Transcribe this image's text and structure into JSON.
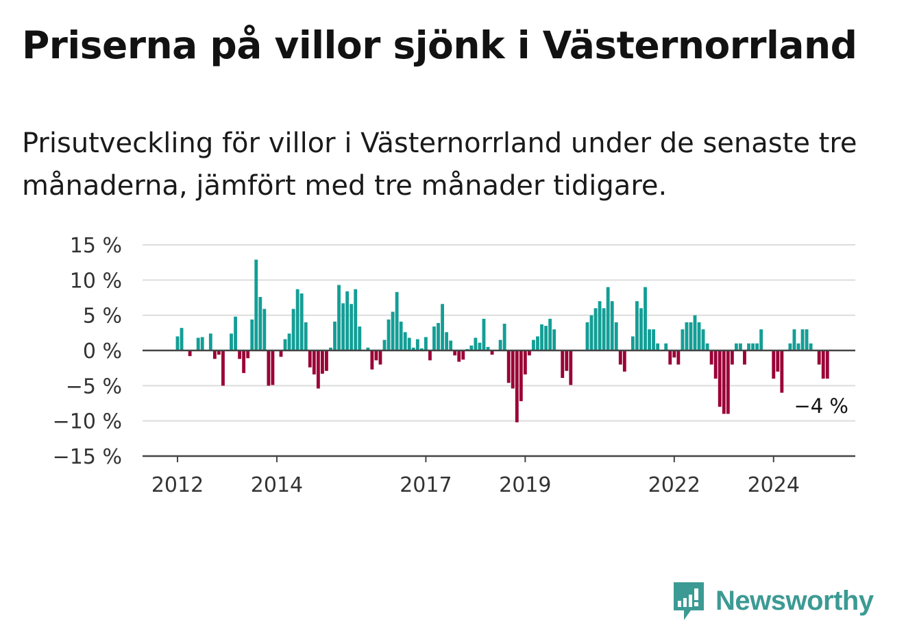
{
  "title": "Priserna på villor sjönk i Västernorrland",
  "subtitle": "Prisutveckling för villor i Västernorrland under de senaste tre månaderna, jämfört med tre månader tidigare.",
  "brand": {
    "name": "Newsworthy",
    "icon": "newsworthy-logo-icon",
    "color": "#3c9a94"
  },
  "chart_data": {
    "type": "bar",
    "x_start": "2012-01",
    "x_step": "month",
    "ylim": [
      -15,
      15
    ],
    "yticks": [
      15,
      10,
      5,
      0,
      -5,
      -10,
      -15
    ],
    "ytick_labels": [
      "15 %",
      "10 %",
      "5 %",
      "0 %",
      "−5 %",
      "−10 %",
      "−15 %"
    ],
    "xticks": [
      "2012",
      "2014",
      "2017",
      "2019",
      "2022",
      "2024"
    ],
    "grid": true,
    "colors": {
      "positive": "#139e96",
      "negative": "#9a0036"
    },
    "last_label": "−4 %",
    "values": [
      2,
      3.2,
      0,
      -0.8,
      0,
      1.8,
      1.9,
      0,
      2.4,
      -1.2,
      -0.6,
      -5,
      0,
      2.4,
      4.8,
      -1.2,
      -3.2,
      -1.1,
      4.4,
      12.9,
      7.6,
      5.9,
      -5,
      -4.9,
      0,
      -0.9,
      1.6,
      2.4,
      5.9,
      8.7,
      8.1,
      4,
      -2.4,
      -3.4,
      -5.4,
      -3.3,
      -2.9,
      0.4,
      4.1,
      9.3,
      6.7,
      8.4,
      6.6,
      8.7,
      3.4,
      0,
      0.4,
      -2.7,
      -1.4,
      -2,
      1.5,
      4.4,
      5.5,
      8.3,
      4.1,
      2.6,
      1.8,
      0.4,
      1.6,
      0.3,
      1.9,
      -1.4,
      3.4,
      3.9,
      6.6,
      2.6,
      1.4,
      -0.7,
      -1.6,
      -1.3,
      0.2,
      0.7,
      1.8,
      1.1,
      4.5,
      0.5,
      -0.6,
      0,
      1.5,
      3.8,
      -4.6,
      -5.4,
      -10.2,
      -7.2,
      -3.4,
      -0.7,
      1.5,
      2,
      3.7,
      3.5,
      4.5,
      3,
      0,
      -3.9,
      -2.9,
      -4.9,
      0,
      0,
      0,
      4,
      5,
      6,
      7,
      6,
      9,
      7,
      4,
      -2,
      -3,
      0,
      2,
      7,
      6,
      9,
      3,
      3,
      1,
      0,
      1,
      -2,
      -1,
      -2,
      3,
      4,
      4,
      5,
      4,
      3,
      1,
      -2,
      -4,
      -8,
      -9,
      -9,
      -2,
      1,
      1,
      -2,
      1,
      1,
      1,
      3,
      0,
      0,
      -4,
      -3,
      -6,
      0,
      1,
      3,
      1,
      3,
      3,
      1,
      0,
      -2,
      -4,
      -4
    ]
  }
}
